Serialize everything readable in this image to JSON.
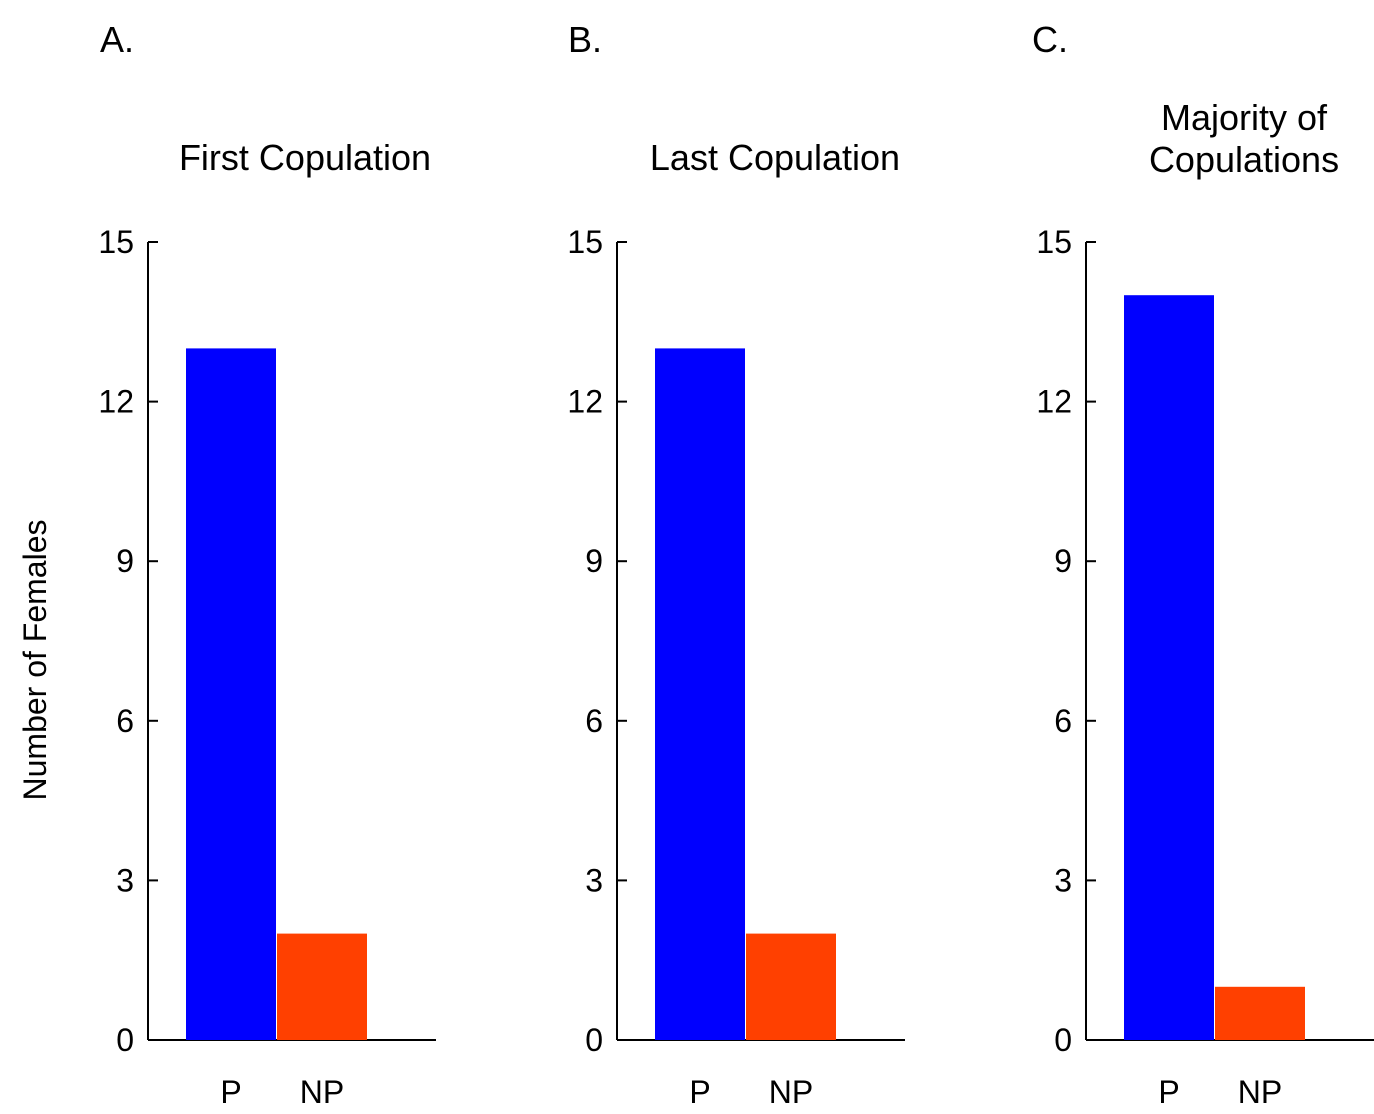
{
  "figure": {
    "ylabel": "Number of Females"
  },
  "chart_data": [
    {
      "type": "bar",
      "panel": "A.",
      "title": [
        "First Copulation"
      ],
      "categories": [
        "P",
        "NP"
      ],
      "values": [
        13,
        2
      ],
      "colors": [
        "#0000ff",
        "#ff4000"
      ],
      "ylim": [
        0,
        15
      ],
      "yticks": [
        0,
        3,
        6,
        9,
        12,
        15
      ],
      "ylabel": "Number of Females",
      "grid": false
    },
    {
      "type": "bar",
      "panel": "B.",
      "title": [
        "Last Copulation"
      ],
      "categories": [
        "P",
        "NP"
      ],
      "values": [
        13,
        2
      ],
      "colors": [
        "#0000ff",
        "#ff4000"
      ],
      "ylim": [
        0,
        15
      ],
      "yticks": [
        0,
        3,
        6,
        9,
        12,
        15
      ],
      "grid": false
    },
    {
      "type": "bar",
      "panel": "C.",
      "title": [
        "Majority of",
        "Copulations"
      ],
      "categories": [
        "P",
        "NP"
      ],
      "values": [
        14,
        1
      ],
      "colors": [
        "#0000ff",
        "#ff4000"
      ],
      "ylim": [
        0,
        15
      ],
      "yticks": [
        0,
        3,
        6,
        9,
        12,
        15
      ],
      "grid": false
    }
  ]
}
